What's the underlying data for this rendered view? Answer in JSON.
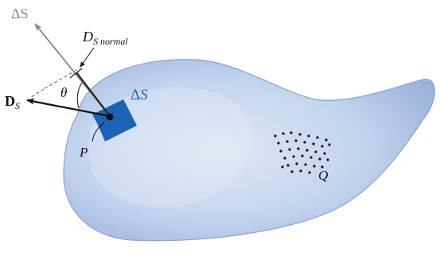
{
  "figure": {
    "labels": {
      "delta_s_vector": "ΔS",
      "d_s_normal_base": "D",
      "d_s_normal_sub": "S normal",
      "theta": "θ",
      "d_s_base": "D",
      "d_s_sub": "S",
      "delta_s_patch_delta": "Δ",
      "delta_s_patch_s": "S",
      "point_p": "P",
      "point_q": "Q"
    },
    "colors": {
      "surface_light": "#dde8f6",
      "surface_mid": "#b8ccea",
      "surface_dark": "#90a9d6",
      "surface_stroke": "#8aa2cf",
      "patch": "#1c63b7",
      "patch_label": "#2260b0",
      "arrow_black": "#111111",
      "arrow_gray": "#8a8a8a",
      "dashed": "#7a7a7a"
    }
  }
}
